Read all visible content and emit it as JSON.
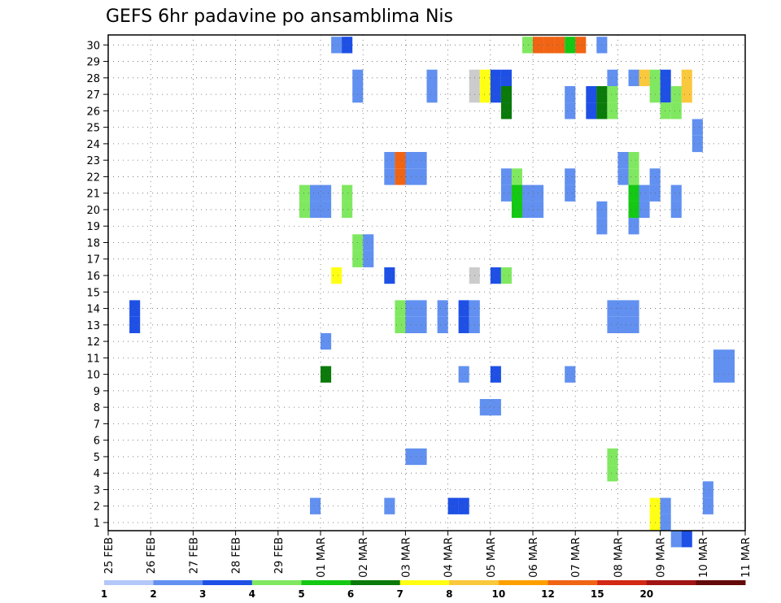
{
  "chart_data": {
    "type": "heatmap",
    "title": "GEFS 6hr padavine po ansamblima Nis",
    "xlabel": "",
    "ylabel": "",
    "x_tick_labels": [
      "25 FEB",
      "26 FEB",
      "27 FEB",
      "28 FEB",
      "29 FEB",
      "01 MAR",
      "02 MAR",
      "03 MAR",
      "04 MAR",
      "05 MAR",
      "06 MAR",
      "07 MAR",
      "08 MAR",
      "09 MAR",
      "10 MAR",
      "11 MAR"
    ],
    "y_tick_labels": [
      "1",
      "2",
      "3",
      "4",
      "5",
      "6",
      "7",
      "8",
      "9",
      "10",
      "11",
      "12",
      "13",
      "14",
      "15",
      "16",
      "17",
      "18",
      "19",
      "20",
      "21",
      "22",
      "23",
      "24",
      "25",
      "26",
      "27",
      "28",
      "29",
      "30"
    ],
    "xlim_days": [
      0,
      15
    ],
    "ylim": [
      0,
      30
    ],
    "grid": true,
    "colorbar": {
      "labels": [
        "1",
        "2",
        "3",
        "4",
        "5",
        "6",
        "7",
        "8",
        "10",
        "12",
        "15",
        "20"
      ],
      "colors": [
        "#b4c7fa",
        "#6190f0",
        "#1e50e6",
        "#80e860",
        "#14c814",
        "#0a7a0a",
        "#ffff14",
        "#fac83c",
        "#ffa000",
        "#f06414",
        "#d22814",
        "#a01414",
        "#640a0a"
      ]
    },
    "cells": [
      [
        0.625,
        13,
        2
      ],
      [
        0.625,
        14,
        2
      ],
      [
        4.875,
        2,
        1
      ],
      [
        4.625,
        20,
        3
      ],
      [
        4.625,
        21,
        3
      ],
      [
        4.875,
        20,
        1
      ],
      [
        4.875,
        21,
        1
      ],
      [
        5.125,
        20,
        1
      ],
      [
        5.125,
        21,
        1
      ],
      [
        5.125,
        12,
        1
      ],
      [
        5.125,
        10,
        5
      ],
      [
        5.375,
        16,
        6
      ],
      [
        5.625,
        20,
        3
      ],
      [
        5.625,
        21,
        3
      ],
      [
        5.375,
        30,
        1
      ],
      [
        5.625,
        30,
        2
      ],
      [
        5.875,
        17,
        3
      ],
      [
        5.875,
        18,
        3
      ],
      [
        6.125,
        17,
        1
      ],
      [
        6.125,
        18,
        1
      ],
      [
        5.875,
        28,
        1
      ],
      [
        5.875,
        27,
        1
      ],
      [
        6.625,
        2,
        1
      ],
      [
        6.625,
        16,
        2
      ],
      [
        6.625,
        22,
        1
      ],
      [
        6.625,
        23,
        1
      ],
      [
        6.875,
        13,
        3
      ],
      [
        6.875,
        14,
        3
      ],
      [
        6.875,
        22,
        9
      ],
      [
        6.875,
        23,
        9
      ],
      [
        7.125,
        13,
        1
      ],
      [
        7.125,
        14,
        1
      ],
      [
        7.125,
        22,
        1
      ],
      [
        7.125,
        23,
        1
      ],
      [
        7.375,
        13,
        1
      ],
      [
        7.375,
        14,
        1
      ],
      [
        7.375,
        22,
        1
      ],
      [
        7.375,
        23,
        1
      ],
      [
        7.375,
        5,
        1
      ],
      [
        7.125,
        5,
        1
      ],
      [
        7.625,
        27,
        1
      ],
      [
        7.625,
        28,
        1
      ],
      [
        7.875,
        13,
        1
      ],
      [
        7.875,
        14,
        1
      ],
      [
        8.125,
        2,
        2
      ],
      [
        8.375,
        2,
        2
      ],
      [
        8.375,
        13,
        2
      ],
      [
        8.375,
        14,
        2
      ],
      [
        8.625,
        13,
        1
      ],
      [
        8.625,
        14,
        1
      ],
      [
        8.375,
        10,
        1
      ],
      [
        8.625,
        16,
        13
      ],
      [
        8.625,
        27,
        13
      ],
      [
        8.625,
        28,
        13
      ],
      [
        8.875,
        27,
        6
      ],
      [
        8.875,
        28,
        6
      ],
      [
        9.125,
        27,
        2
      ],
      [
        9.125,
        28,
        2
      ],
      [
        9.375,
        27,
        2
      ],
      [
        9.375,
        28,
        2
      ],
      [
        8.875,
        8,
        1
      ],
      [
        9.125,
        8,
        1
      ],
      [
        9.125,
        10,
        2
      ],
      [
        9.125,
        16,
        2
      ],
      [
        9.375,
        16,
        3
      ],
      [
        9.375,
        21,
        1
      ],
      [
        9.375,
        22,
        1
      ],
      [
        9.625,
        21,
        3
      ],
      [
        9.625,
        22,
        3
      ],
      [
        9.375,
        26,
        5
      ],
      [
        9.375,
        27,
        5
      ],
      [
        9.625,
        20,
        4
      ],
      [
        9.625,
        21,
        4
      ],
      [
        9.875,
        20,
        1
      ],
      [
        9.875,
        21,
        1
      ],
      [
        10.125,
        20,
        1
      ],
      [
        10.125,
        21,
        1
      ],
      [
        9.875,
        30,
        3
      ],
      [
        10.125,
        30,
        9
      ],
      [
        10.375,
        30,
        9
      ],
      [
        10.625,
        30,
        9
      ],
      [
        10.875,
        30,
        4
      ],
      [
        11.125,
        30,
        9
      ],
      [
        10.875,
        10,
        1
      ],
      [
        10.875,
        21,
        1
      ],
      [
        10.875,
        22,
        1
      ],
      [
        10.875,
        26,
        1
      ],
      [
        10.875,
        27,
        1
      ],
      [
        11.375,
        26,
        2
      ],
      [
        11.375,
        27,
        2
      ],
      [
        11.625,
        26,
        5
      ],
      [
        11.625,
        27,
        5
      ],
      [
        11.875,
        26,
        3
      ],
      [
        11.875,
        27,
        3
      ],
      [
        11.625,
        19,
        1
      ],
      [
        11.625,
        20,
        1
      ],
      [
        11.625,
        30,
        1
      ],
      [
        11.875,
        4,
        3
      ],
      [
        11.875,
        5,
        3
      ],
      [
        11.875,
        13,
        1
      ],
      [
        11.875,
        14,
        1
      ],
      [
        12.125,
        13,
        1
      ],
      [
        12.125,
        14,
        1
      ],
      [
        12.375,
        13,
        1
      ],
      [
        12.375,
        14,
        1
      ],
      [
        11.875,
        28,
        1
      ],
      [
        12.125,
        22,
        1
      ],
      [
        12.125,
        23,
        1
      ],
      [
        12.375,
        22,
        3
      ],
      [
        12.375,
        23,
        3
      ],
      [
        12.375,
        19,
        1
      ],
      [
        12.375,
        20,
        4
      ],
      [
        12.375,
        21,
        4
      ],
      [
        12.625,
        20,
        1
      ],
      [
        12.625,
        21,
        1
      ],
      [
        12.375,
        28,
        1
      ],
      [
        12.625,
        28,
        7
      ],
      [
        12.875,
        27,
        3
      ],
      [
        12.875,
        28,
        3
      ],
      [
        13.125,
        27,
        2
      ],
      [
        13.125,
        28,
        2
      ],
      [
        12.875,
        1,
        6
      ],
      [
        12.875,
        2,
        6
      ],
      [
        13.125,
        1,
        1
      ],
      [
        13.125,
        2,
        1
      ],
      [
        12.875,
        21,
        1
      ],
      [
        12.875,
        22,
        1
      ],
      [
        13.125,
        26,
        3
      ],
      [
        13.375,
        26,
        3
      ],
      [
        13.375,
        27,
        3
      ],
      [
        13.375,
        20,
        1
      ],
      [
        13.375,
        21,
        1
      ],
      [
        13.625,
        27,
        7
      ],
      [
        13.625,
        28,
        7
      ],
      [
        13.375,
        0,
        1
      ],
      [
        13.625,
        0,
        2
      ],
      [
        13.875,
        24,
        1
      ],
      [
        13.875,
        25,
        1
      ],
      [
        14.125,
        2,
        1
      ],
      [
        14.125,
        3,
        1
      ],
      [
        14.375,
        11,
        1
      ],
      [
        14.625,
        11,
        1
      ],
      [
        14.375,
        10,
        1
      ],
      [
        14.625,
        10,
        1
      ]
    ]
  }
}
